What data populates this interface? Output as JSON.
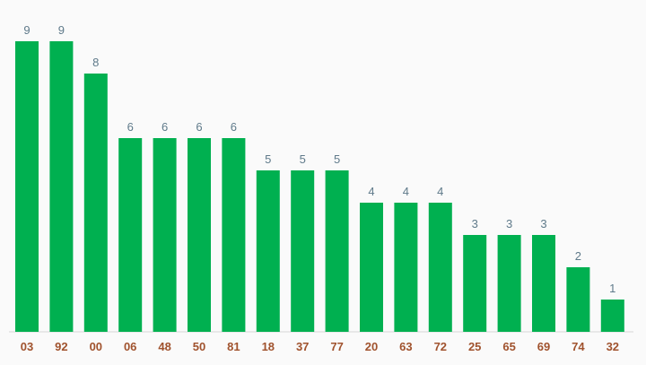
{
  "chart_data": {
    "type": "bar",
    "categories": [
      "03",
      "92",
      "00",
      "06",
      "48",
      "50",
      "81",
      "18",
      "37",
      "77",
      "20",
      "63",
      "72",
      "25",
      "65",
      "69",
      "74",
      "32"
    ],
    "values": [
      9,
      9,
      8,
      6,
      6,
      6,
      6,
      5,
      5,
      5,
      4,
      4,
      4,
      3,
      3,
      3,
      2,
      1
    ],
    "title": "",
    "xlabel": "",
    "ylabel": "",
    "ylim": [
      0,
      9
    ],
    "grid": false,
    "data_labels": true,
    "colors": {
      "bar": "#00b050",
      "value_label": "#5f7a8a",
      "tick_label": "#a0522d",
      "axis_line": "#d6d6d6",
      "background": "#fafafa"
    }
  }
}
